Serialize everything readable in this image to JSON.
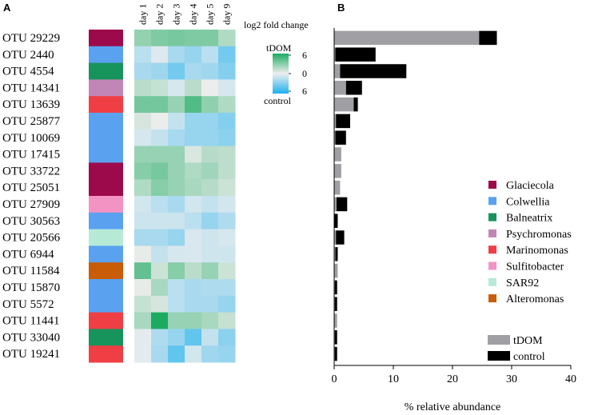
{
  "panel_labels": {
    "a": "A",
    "b": "B"
  },
  "chart_data": [
    {
      "type": "heatmap",
      "panel": "A",
      "title": "log2 fold change",
      "days": [
        "day 1",
        "day 2",
        "day 3",
        "day 4",
        "day 5",
        "day 9"
      ],
      "scale": {
        "max_label": "6",
        "mid_label": "0",
        "min_label": "6",
        "top_label": "tDOM",
        "bottom_label": "control",
        "range": [
          -6,
          6
        ]
      },
      "rows": [
        {
          "otu": "OTU 29229",
          "genus": "Glaciecola",
          "values": [
            2.6,
            3.2,
            3.4,
            3.2,
            3.2,
            1.8
          ]
        },
        {
          "otu": "OTU 2440",
          "genus": "Colwellia",
          "values": [
            -1.5,
            -0.5,
            -2.0,
            -2.5,
            -1.5,
            -3.5
          ]
        },
        {
          "otu": "OTU 4554",
          "genus": "Balneatrix",
          "values": [
            -2.0,
            -2.3,
            -3.5,
            -2.0,
            -2.2,
            -3.0
          ]
        },
        {
          "otu": "OTU 14341",
          "genus": "Psychromonas",
          "values": [
            1.5,
            1.2,
            -0.7,
            1.5,
            0.1,
            -0.7
          ]
        },
        {
          "otu": "OTU 13639",
          "genus": "Marinomonas",
          "values": [
            3.5,
            3.5,
            2.5,
            4.5,
            2.7,
            1.8
          ]
        },
        {
          "otu": "OTU 25877",
          "genus": "Colwellia",
          "values": [
            0.7,
            0.1,
            -1.2,
            -2.5,
            -2.5,
            -3.0
          ]
        },
        {
          "otu": "OTU 10069",
          "genus": "Colwellia",
          "values": [
            -0.7,
            -1.2,
            -2.0,
            -2.5,
            -2.5,
            -2.8
          ]
        },
        {
          "otu": "OTU 17415",
          "genus": "Colwellia",
          "values": [
            2.5,
            2.5,
            2.5,
            0.6,
            1.6,
            1.4
          ]
        },
        {
          "otu": "OTU 33722",
          "genus": "Glaciecola",
          "values": [
            3.0,
            3.4,
            2.5,
            1.8,
            2.2,
            1.4
          ]
        },
        {
          "otu": "OTU 25051",
          "genus": "Glaciecola",
          "values": [
            1.8,
            3.0,
            2.5,
            2.0,
            1.6,
            1.0
          ]
        },
        {
          "otu": "OTU 27909",
          "genus": "Sulfitobacter",
          "values": [
            -0.8,
            -1.5,
            -2.0,
            -0.8,
            -1.2,
            -0.8
          ]
        },
        {
          "otu": "OTU 30563",
          "genus": "Colwellia",
          "values": [
            -1.0,
            -1.0,
            -1.0,
            -1.5,
            -2.5,
            -1.8
          ]
        },
        {
          "otu": "OTU 20566",
          "genus": "SAR92",
          "values": [
            -2.0,
            -2.0,
            -2.5,
            -0.6,
            -0.9,
            -0.7
          ]
        },
        {
          "otu": "OTU 6944",
          "genus": "Colwellia",
          "values": [
            0.2,
            -1.2,
            -0.7,
            -0.6,
            -0.9,
            -0.9
          ]
        },
        {
          "otu": "OTU 11584",
          "genus": "Alteromonas",
          "values": [
            4.0,
            1.0,
            3.0,
            1.5,
            2.5,
            1.0
          ]
        },
        {
          "otu": "OTU 15870",
          "genus": "Colwellia",
          "values": [
            0.2,
            2.0,
            -1.5,
            -2.0,
            -1.8,
            -1.8
          ]
        },
        {
          "otu": "OTU 5572",
          "genus": "Colwellia",
          "values": [
            1.2,
            0.7,
            -1.5,
            -2.0,
            -2.0,
            -2.5
          ]
        },
        {
          "otu": "OTU 11441",
          "genus": "Marinomonas",
          "values": [
            2.0,
            6.0,
            2.5,
            2.5,
            2.0,
            1.2
          ]
        },
        {
          "otu": "OTU 33040",
          "genus": "Balneatrix",
          "values": [
            -0.3,
            -1.8,
            -2.5,
            -4.0,
            -1.2,
            -2.8
          ]
        },
        {
          "otu": "OTU 19241",
          "genus": "Marinomonas",
          "values": [
            -0.3,
            -2.0,
            -4.0,
            -0.8,
            -2.2,
            -2.5
          ]
        }
      ],
      "genera": [
        {
          "name": "Glaciecola",
          "color": "#9c0a4b"
        },
        {
          "name": "Colwellia",
          "color": "#5aa2f0"
        },
        {
          "name": "Balneatrix",
          "color": "#17935c"
        },
        {
          "name": "Psychromonas",
          "color": "#c286b6"
        },
        {
          "name": "Marinomonas",
          "color": "#ef3f45"
        },
        {
          "name": "Sulfitobacter",
          "color": "#f393c4"
        },
        {
          "name": "SAR92",
          "color": "#b7ead6"
        },
        {
          "name": "Alteromonas",
          "color": "#c85c07"
        }
      ],
      "colors": {
        "positive": "#1dab62",
        "negative": "#1cb0ee",
        "neutral": "#eeeeee"
      }
    },
    {
      "type": "bar",
      "orientation": "horizontal",
      "stacked": true,
      "panel": "B",
      "xlabel": "% relative abundance",
      "xlim": [
        0,
        40
      ],
      "xticks": [
        "0",
        "10",
        "20",
        "30",
        "40"
      ],
      "categories": [
        "OTU 29229",
        "OTU 2440",
        "OTU 4554",
        "OTU 14341",
        "OTU 13639",
        "OTU 25877",
        "OTU 10069",
        "OTU 17415",
        "OTU 33722",
        "OTU 25051",
        "OTU 27909",
        "OTU 30563",
        "OTU 20566",
        "OTU 6944",
        "OTU 11584",
        "OTU 15870",
        "OTU 5572",
        "OTU 11441",
        "OTU 33040",
        "OTU 19241"
      ],
      "series": [
        {
          "name": "tDOM",
          "color": "#a0a0a4",
          "values": [
            24.5,
            0.2,
            1.0,
            2.0,
            3.3,
            0.3,
            0.2,
            1.2,
            1.2,
            1.0,
            0.4,
            0.0,
            0.3,
            0.2,
            0.6,
            0.1,
            0.1,
            0.5,
            0.1,
            0.1
          ]
        },
        {
          "name": "control",
          "color": "#000000",
          "values": [
            3.0,
            6.8,
            11.2,
            2.7,
            0.7,
            2.4,
            1.8,
            0.0,
            0.0,
            0.0,
            1.8,
            0.6,
            1.4,
            0.4,
            0.0,
            0.4,
            0.4,
            0.0,
            0.4,
            0.4
          ]
        }
      ],
      "legend": {
        "position": "bottom-right",
        "labels": [
          "tDOM",
          "control"
        ]
      }
    }
  ]
}
